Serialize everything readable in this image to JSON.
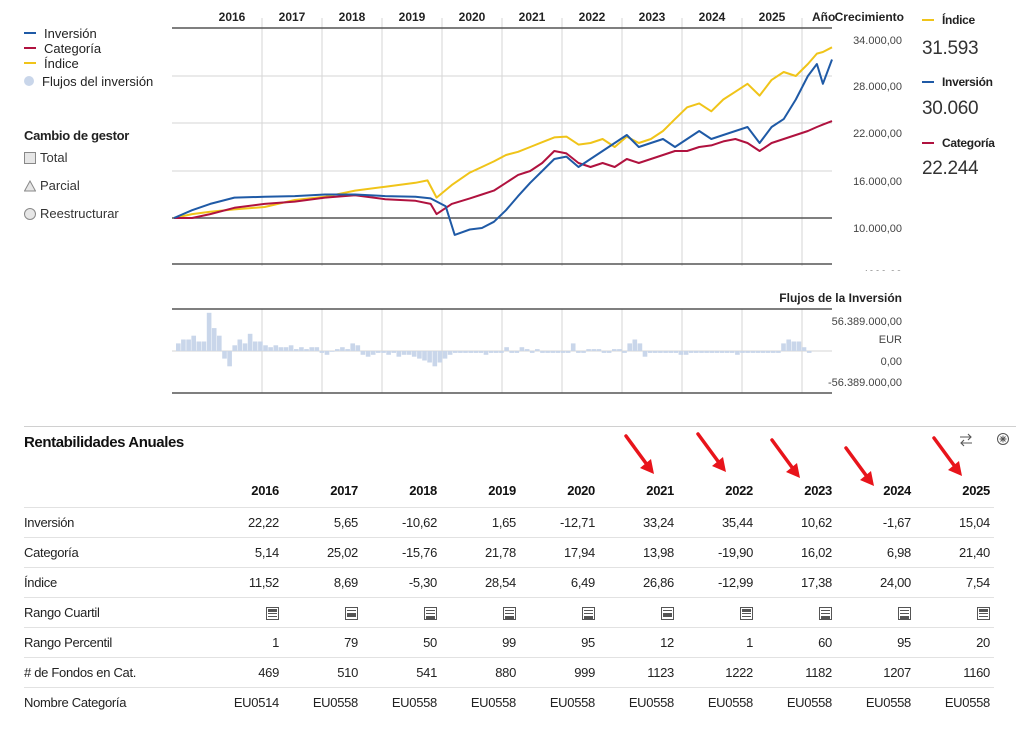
{
  "legend": {
    "items": [
      {
        "label": "Inversión",
        "color": "#1f5aa6",
        "kind": "line"
      },
      {
        "label": "Categoría",
        "color": "#b0123f",
        "kind": "line"
      },
      {
        "label": "Índice",
        "color": "#f0c419",
        "kind": "line"
      },
      {
        "label": "Flujos del inversión",
        "color": "#c9d6ea",
        "kind": "dot"
      }
    ]
  },
  "manager_change": {
    "title": "Cambio de gestor",
    "items": [
      {
        "label": "Total",
        "icon": "square-icon"
      },
      {
        "label": "Parcial",
        "icon": "triangle-icon"
      },
      {
        "label": "Reestructurar",
        "icon": "circle-icon"
      }
    ]
  },
  "chart_data": [
    {
      "type": "line",
      "title": "Crecimiento",
      "x_axis_label": "Año",
      "years": [
        "2016",
        "2017",
        "2018",
        "2019",
        "2020",
        "2021",
        "2022",
        "2023",
        "2024",
        "2025"
      ],
      "y_ticks": [
        "34.000,00",
        "28.000,00",
        "22.000,00",
        "16.000,00",
        "10.000,00",
        "4000,00"
      ],
      "ylim": [
        4000,
        34000
      ],
      "xlim": [
        2015.0,
        2025.9
      ],
      "series": [
        {
          "name": "Inversión",
          "color": "#1f5aa6",
          "points": [
            [
              2015.0,
              10000
            ],
            [
              2015.3,
              11000
            ],
            [
              2015.6,
              11800
            ],
            [
              2016.0,
              12600
            ],
            [
              2016.5,
              12700
            ],
            [
              2017.0,
              12800
            ],
            [
              2017.5,
              13000
            ],
            [
              2018.0,
              13000
            ],
            [
              2018.5,
              12800
            ],
            [
              2019.0,
              12700
            ],
            [
              2019.25,
              12500
            ],
            [
              2019.5,
              11500
            ],
            [
              2019.65,
              7800
            ],
            [
              2019.9,
              8500
            ],
            [
              2020.1,
              8700
            ],
            [
              2020.3,
              9500
            ],
            [
              2020.5,
              11000
            ],
            [
              2020.7,
              12800
            ],
            [
              2020.9,
              14500
            ],
            [
              2021.1,
              16000
            ],
            [
              2021.3,
              17500
            ],
            [
              2021.5,
              17800
            ],
            [
              2021.7,
              16500
            ],
            [
              2021.9,
              17500
            ],
            [
              2022.1,
              18500
            ],
            [
              2022.3,
              19500
            ],
            [
              2022.5,
              20500
            ],
            [
              2022.7,
              19000
            ],
            [
              2022.9,
              19500
            ],
            [
              2023.1,
              20000
            ],
            [
              2023.3,
              19000
            ],
            [
              2023.5,
              20000
            ],
            [
              2023.7,
              21000
            ],
            [
              2023.9,
              20000
            ],
            [
              2024.1,
              20500
            ],
            [
              2024.3,
              21000
            ],
            [
              2024.5,
              21500
            ],
            [
              2024.7,
              19500
            ],
            [
              2024.9,
              21500
            ],
            [
              2025.1,
              22500
            ],
            [
              2025.3,
              25000
            ],
            [
              2025.5,
              28000
            ],
            [
              2025.65,
              29500
            ],
            [
              2025.75,
              27000
            ],
            [
              2025.9,
              30060
            ]
          ]
        },
        {
          "name": "Categoría",
          "color": "#b0123f",
          "points": [
            [
              2015.0,
              10000
            ],
            [
              2015.3,
              10000
            ],
            [
              2015.6,
              10500
            ],
            [
              2016.0,
              11300
            ],
            [
              2016.5,
              11800
            ],
            [
              2017.0,
              12100
            ],
            [
              2017.5,
              12600
            ],
            [
              2018.0,
              12900
            ],
            [
              2018.5,
              12400
            ],
            [
              2019.0,
              12200
            ],
            [
              2019.25,
              11800
            ],
            [
              2019.35,
              10500
            ],
            [
              2019.6,
              11800
            ],
            [
              2019.9,
              12500
            ],
            [
              2020.1,
              13000
            ],
            [
              2020.3,
              13500
            ],
            [
              2020.5,
              14500
            ],
            [
              2020.7,
              15500
            ],
            [
              2020.9,
              16000
            ],
            [
              2021.1,
              17000
            ],
            [
              2021.3,
              18500
            ],
            [
              2021.5,
              18200
            ],
            [
              2021.7,
              17000
            ],
            [
              2021.9,
              16500
            ],
            [
              2022.1,
              17000
            ],
            [
              2022.3,
              16500
            ],
            [
              2022.5,
              17500
            ],
            [
              2022.7,
              17000
            ],
            [
              2022.9,
              17500
            ],
            [
              2023.1,
              18000
            ],
            [
              2023.3,
              18500
            ],
            [
              2023.5,
              18500
            ],
            [
              2023.7,
              19000
            ],
            [
              2023.9,
              19200
            ],
            [
              2024.1,
              19700
            ],
            [
              2024.3,
              20000
            ],
            [
              2024.5,
              19500
            ],
            [
              2024.7,
              18500
            ],
            [
              2024.9,
              19500
            ],
            [
              2025.1,
              20000
            ],
            [
              2025.3,
              20500
            ],
            [
              2025.5,
              21000
            ],
            [
              2025.65,
              21500
            ],
            [
              2025.75,
              21800
            ],
            [
              2025.9,
              22244
            ]
          ]
        },
        {
          "name": "Índice",
          "color": "#f0c419",
          "points": [
            [
              2015.0,
              10000
            ],
            [
              2015.3,
              10500
            ],
            [
              2015.6,
              10800
            ],
            [
              2016.0,
              11100
            ],
            [
              2016.5,
              11400
            ],
            [
              2017.0,
              12300
            ],
            [
              2017.5,
              12700
            ],
            [
              2018.0,
              13500
            ],
            [
              2018.5,
              14000
            ],
            [
              2019.0,
              14500
            ],
            [
              2019.2,
              14800
            ],
            [
              2019.35,
              12600
            ],
            [
              2019.6,
              14200
            ],
            [
              2019.9,
              15800
            ],
            [
              2020.1,
              16500
            ],
            [
              2020.3,
              17200
            ],
            [
              2020.5,
              18000
            ],
            [
              2020.7,
              18400
            ],
            [
              2020.9,
              19000
            ],
            [
              2021.1,
              19600
            ],
            [
              2021.3,
              20200
            ],
            [
              2021.5,
              20300
            ],
            [
              2021.7,
              19300
            ],
            [
              2021.9,
              19500
            ],
            [
              2022.1,
              20000
            ],
            [
              2022.3,
              19000
            ],
            [
              2022.5,
              20300
            ],
            [
              2022.7,
              19500
            ],
            [
              2022.9,
              20000
            ],
            [
              2023.1,
              21000
            ],
            [
              2023.3,
              22500
            ],
            [
              2023.5,
              24000
            ],
            [
              2023.7,
              24500
            ],
            [
              2023.9,
              23500
            ],
            [
              2024.1,
              25000
            ],
            [
              2024.3,
              26000
            ],
            [
              2024.5,
              27000
            ],
            [
              2024.7,
              25500
            ],
            [
              2024.9,
              27500
            ],
            [
              2025.1,
              28500
            ],
            [
              2025.3,
              28000
            ],
            [
              2025.5,
              29500
            ],
            [
              2025.65,
              30800
            ],
            [
              2025.75,
              31000
            ],
            [
              2025.9,
              31593
            ]
          ]
        }
      ]
    },
    {
      "type": "bar",
      "title": "Flujos de la Inversión",
      "y_ticks": [
        "56.389.000,00",
        "EUR",
        "0,00",
        "-56.389.000,00"
      ],
      "ylim": [
        -56389000,
        56389000
      ],
      "values": [
        4,
        6,
        6,
        8,
        5,
        5,
        20,
        12,
        8,
        -4,
        -8,
        3,
        6,
        4,
        9,
        5,
        5,
        3,
        2,
        3,
        2,
        2,
        3,
        1,
        2,
        1,
        2,
        2,
        -1,
        -2,
        0,
        1,
        2,
        1,
        4,
        3,
        -2,
        -3,
        -2,
        -1,
        -1,
        -2,
        -1,
        -3,
        -2,
        -2,
        -3,
        -4,
        -5,
        -6,
        -8,
        -6,
        -4,
        -2,
        -1,
        -1,
        -1,
        -1,
        -1,
        -1,
        -2,
        -1,
        -1,
        -1,
        2,
        -1,
        -1,
        2,
        1,
        -1,
        1,
        -1,
        -1,
        -1,
        -1,
        -1,
        -1,
        4,
        -1,
        -1,
        1,
        1,
        1,
        -1,
        -1,
        1,
        1,
        -1,
        4,
        6,
        4,
        -3,
        -1,
        -1,
        -1,
        -1,
        -1,
        -1,
        -2,
        -2,
        -1,
        -1,
        -1,
        -1,
        -1,
        -1,
        -1,
        -1,
        -1,
        -2,
        -1,
        -1,
        -1,
        -1,
        -1,
        -1,
        -1,
        -1,
        4,
        6,
        5,
        5,
        2,
        -1
      ]
    }
  ],
  "right_panel": [
    {
      "label": "Índice",
      "value": "31.593",
      "color": "#f0c419"
    },
    {
      "label": "Inversión",
      "value": "30.060",
      "color": "#1f5aa6"
    },
    {
      "label": "Categoría",
      "value": "22.244",
      "color": "#b0123f"
    }
  ],
  "table": {
    "title": "Rentabilidades Anuales",
    "icons": [
      "swap-icon",
      "settings-icon"
    ],
    "headers": [
      "",
      "2016",
      "2017",
      "2018",
      "2019",
      "2020",
      "2021",
      "2022",
      "2023",
      "2024",
      "2025"
    ],
    "rows": [
      {
        "label": "Inversión",
        "cells": [
          "22,22",
          "5,65",
          "-10,62",
          "1,65",
          "-12,71",
          "33,24",
          "35,44",
          "10,62",
          "-1,67",
          "15,04"
        ]
      },
      {
        "label": "Categoría",
        "cells": [
          "5,14",
          "25,02",
          "-15,76",
          "21,78",
          "17,94",
          "13,98",
          "-19,90",
          "16,02",
          "6,98",
          "21,40"
        ]
      },
      {
        "label": "Índice",
        "cells": [
          "11,52",
          "8,69",
          "-5,30",
          "28,54",
          "6,49",
          "26,86",
          "-12,99",
          "17,38",
          "24,00",
          "7,54"
        ]
      },
      {
        "label": "Rango Cuartil",
        "quartiles": [
          1,
          2,
          3,
          4,
          4,
          2,
          1,
          3,
          4,
          1
        ]
      },
      {
        "label": "Rango Percentil",
        "cells": [
          "1",
          "79",
          "50",
          "99",
          "95",
          "12",
          "1",
          "60",
          "95",
          "20"
        ]
      },
      {
        "label": "# de Fondos en Cat.",
        "cells": [
          "469",
          "510",
          "541",
          "880",
          "999",
          "1123",
          "1222",
          "1182",
          "1207",
          "1160"
        ]
      },
      {
        "label": "Nombre Categoría",
        "cells": [
          "EU0514",
          "EU0558",
          "EU0558",
          "EU0558",
          "EU0558",
          "EU0558",
          "EU0558",
          "EU0558",
          "EU0558",
          "EU0558"
        ]
      }
    ]
  },
  "annotation_arrows": {
    "color": "#e8141b",
    "count": 5
  }
}
